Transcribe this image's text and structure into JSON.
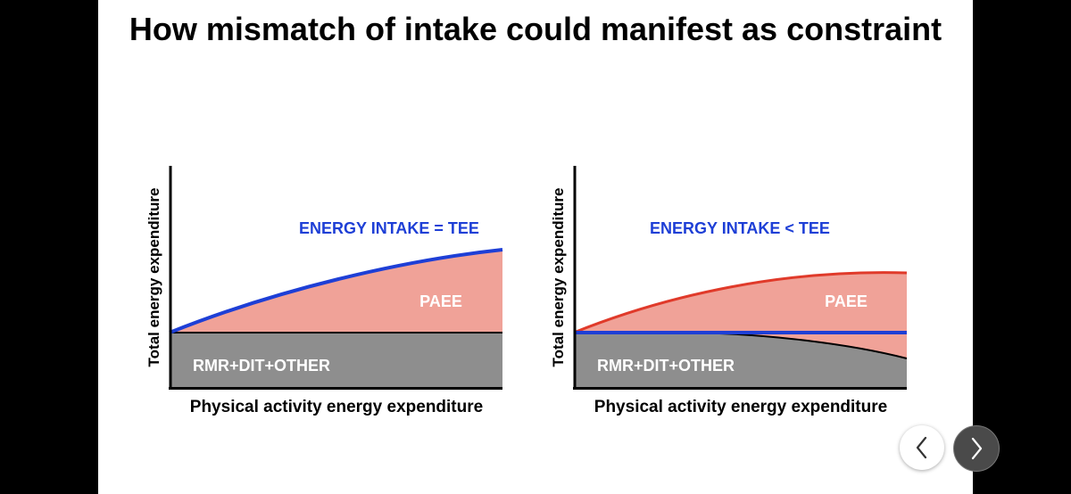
{
  "slide": {
    "title": "How mismatch of intake could manifest as constraint"
  },
  "diagrams": [
    {
      "id": "left",
      "ylabel": "Total energy expenditure",
      "xlabel": "Physical activity energy expenditure",
      "intake_label": "ENERGY INTAKE = TEE",
      "paee_label": "PAEE",
      "base_label": "RMR+DIT+OTHER"
    },
    {
      "id": "right",
      "ylabel": "Total energy expenditure",
      "xlabel": "Physical activity energy expenditure",
      "intake_label": "ENERGY INTAKE < TEE",
      "paee_label": "PAEE",
      "base_label": "RMR+DIT+OTHER"
    }
  ],
  "colors": {
    "intake_line": "#1e3fd6",
    "tee_line": "#e03a2a",
    "paee_fill": "#f0a298",
    "base_fill": "#8e8e8e",
    "intake_text": "#1e3fd6"
  },
  "navigation": {
    "prev_icon": "chevron-left-icon",
    "next_icon": "chevron-right-icon"
  }
}
